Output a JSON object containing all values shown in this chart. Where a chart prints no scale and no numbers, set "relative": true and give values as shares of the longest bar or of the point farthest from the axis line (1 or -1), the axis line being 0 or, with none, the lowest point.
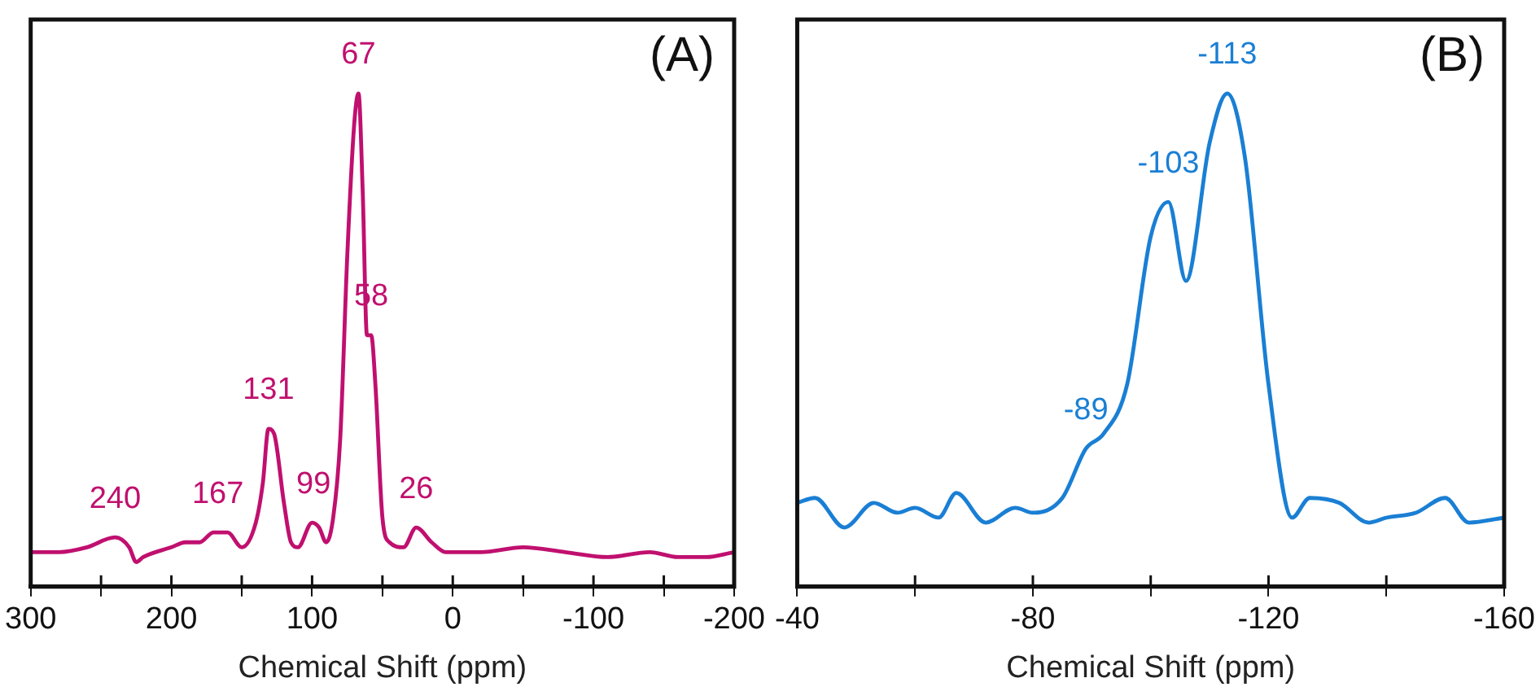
{
  "chart_data": [
    {
      "type": "line",
      "relative": true,
      "xlabel": "Chemical Shift (ppm)",
      "marker": "none",
      "grid": false,
      "legend": false,
      "xlim": [
        300,
        -200
      ],
      "xticks": [
        300,
        {
          "value": 250,
          "label": null
        },
        200,
        {
          "value": 150,
          "label": null
        },
        100,
        {
          "value": 50,
          "label": null
        },
        0,
        {
          "value": -50,
          "label": null
        },
        -100,
        {
          "value": -150,
          "label": null
        },
        -200
      ],
      "series": [
        {
          "color": "#c0106f",
          "x": [
            300,
            280,
            260,
            240,
            230,
            225,
            220,
            200,
            190,
            180,
            170,
            160,
            150,
            140,
            135,
            131,
            127,
            120,
            115,
            110,
            100,
            95,
            90,
            85,
            80,
            75,
            70,
            67,
            64,
            61,
            58,
            55,
            50,
            45,
            35,
            26,
            15,
            5,
            -20,
            -50,
            -80,
            -110,
            -140,
            -160,
            -180,
            -200
          ],
          "values": [
            0.07,
            0.07,
            0.08,
            0.1,
            0.08,
            0.05,
            0.06,
            0.08,
            0.09,
            0.09,
            0.11,
            0.11,
            0.08,
            0.13,
            0.21,
            0.32,
            0.31,
            0.17,
            0.09,
            0.08,
            0.13,
            0.12,
            0.09,
            0.14,
            0.3,
            0.67,
            0.94,
            1,
            0.8,
            0.51,
            0.51,
            0.41,
            0.14,
            0.09,
            0.08,
            0.12,
            0.09,
            0.07,
            0.07,
            0.08,
            0.07,
            0.06,
            0.07,
            0.06,
            0.06,
            0.07
          ]
        }
      ],
      "annotations": [
        {
          "text": "240",
          "x": 240,
          "y": 0.1
        },
        {
          "text": "167",
          "x": 167,
          "y": 0.11
        },
        {
          "text": "131",
          "x": 131,
          "y": 0.32
        },
        {
          "text": "99",
          "x": 99,
          "y": 0.13
        },
        {
          "text": "67",
          "x": 67,
          "y": 1
        },
        {
          "text": "58",
          "x": 58,
          "y": 0.51
        },
        {
          "text": "26",
          "x": 26,
          "y": 0.12
        },
        "(A)"
      ]
    },
    {
      "type": "line",
      "relative": true,
      "xlabel": "Chemical Shift (ppm)",
      "marker": "none",
      "grid": false,
      "legend": false,
      "xlim": [
        -40,
        -160
      ],
      "xticks": [
        -40,
        {
          "value": -60,
          "label": null
        },
        -80,
        {
          "value": -100,
          "label": null
        },
        -120,
        {
          "value": -140,
          "label": null
        },
        -160
      ],
      "series": [
        {
          "color": "#1a7fd4",
          "x": [
            -40,
            -43,
            -48,
            -53,
            -57,
            -60,
            -64,
            -67,
            -72,
            -77,
            -80,
            -85,
            -89,
            -92,
            -96,
            -100,
            -103,
            -106,
            -110,
            -113,
            -116,
            -120,
            -124,
            -127,
            -132,
            -137,
            -140,
            -145,
            -150,
            -154,
            -160
          ],
          "values": [
            0.17,
            0.18,
            0.12,
            0.17,
            0.15,
            0.16,
            0.14,
            0.19,
            0.13,
            0.16,
            0.15,
            0.18,
            0.28,
            0.31,
            0.41,
            0.71,
            0.78,
            0.62,
            0.9,
            1,
            0.87,
            0.41,
            0.14,
            0.18,
            0.17,
            0.13,
            0.14,
            0.15,
            0.18,
            0.13,
            0.14
          ]
        }
      ],
      "annotations": [
        {
          "text": "-89",
          "x": -89,
          "y": 0.28
        },
        {
          "text": "-103",
          "x": -103,
          "y": 0.78
        },
        {
          "text": "-113",
          "x": -113,
          "y": 1
        },
        "(B)"
      ]
    }
  ]
}
